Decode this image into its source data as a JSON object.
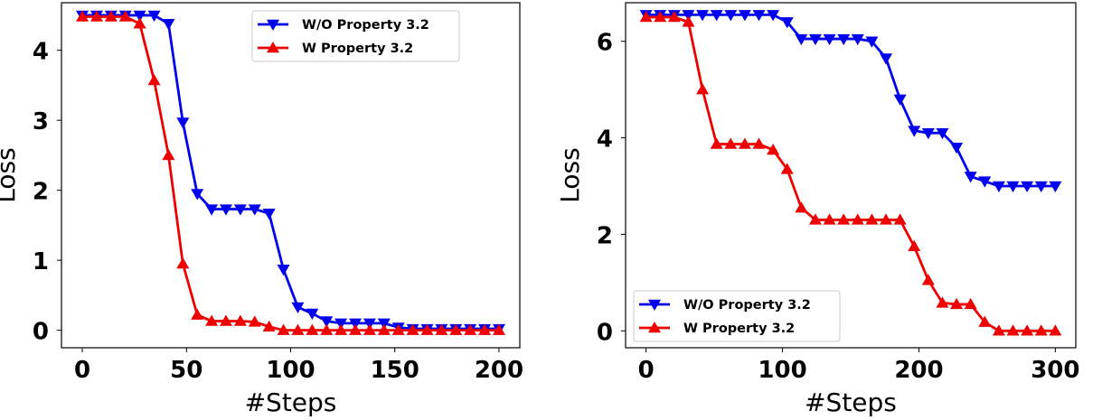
{
  "chart_data": [
    {
      "type": "line",
      "xlabel": "#Steps",
      "ylabel": "Loss",
      "xlim": [
        -10,
        210
      ],
      "ylim": [
        -0.25,
        4.68
      ],
      "xticks": [
        0,
        50,
        100,
        150,
        200
      ],
      "yticks": [
        0,
        1,
        2,
        3,
        4
      ],
      "legend_position": "top-right",
      "grid": false,
      "x_count": 30,
      "x_max": 200,
      "series": [
        {
          "name": "W/O Property 3.2",
          "color": "#0000ee",
          "marker": "triangle-down",
          "values": [
            4.5,
            4.5,
            4.5,
            4.5,
            4.5,
            4.5,
            4.38,
            2.97,
            1.95,
            1.73,
            1.73,
            1.73,
            1.73,
            1.67,
            0.87,
            0.33,
            0.24,
            0.13,
            0.1,
            0.1,
            0.1,
            0.1,
            0.04,
            0.02,
            0.02,
            0.02,
            0.02,
            0.02,
            0.02,
            0.02
          ]
        },
        {
          "name": "W Property 3.2",
          "color": "#ee0000",
          "marker": "triangle-up",
          "values": [
            4.48,
            4.48,
            4.48,
            4.48,
            4.38,
            3.57,
            2.5,
            0.95,
            0.22,
            0.13,
            0.13,
            0.13,
            0.12,
            0.05,
            0,
            0,
            0,
            0,
            0,
            0,
            0,
            0,
            0,
            0,
            0,
            0,
            0,
            0,
            0,
            0
          ]
        }
      ]
    },
    {
      "type": "line",
      "xlabel": "#Steps",
      "ylabel": "Loss",
      "xlim": [
        -15,
        315
      ],
      "ylim": [
        -0.35,
        6.8
      ],
      "xticks": [
        0,
        100,
        200,
        300
      ],
      "yticks": [
        0,
        2,
        4,
        6
      ],
      "legend_position": "lower-left",
      "grid": false,
      "x_count": 30,
      "x_max": 300,
      "series": [
        {
          "name": "W/O Property 3.2",
          "color": "#0000ee",
          "marker": "triangle-down",
          "values": [
            6.55,
            6.55,
            6.55,
            6.55,
            6.55,
            6.55,
            6.55,
            6.55,
            6.55,
            6.55,
            6.4,
            6.05,
            6.05,
            6.05,
            6.05,
            6.05,
            6.0,
            5.65,
            4.8,
            4.15,
            4.1,
            4.1,
            3.8,
            3.2,
            3.1,
            3.0,
            3.0,
            3.0,
            3.0,
            3.0
          ]
        },
        {
          "name": "W Property 3.2",
          "color": "#ee0000",
          "marker": "triangle-up",
          "values": [
            6.5,
            6.5,
            6.5,
            6.4,
            5.0,
            3.87,
            3.87,
            3.87,
            3.87,
            3.75,
            3.35,
            2.55,
            2.3,
            2.3,
            2.3,
            2.3,
            2.3,
            2.3,
            2.3,
            1.75,
            1.05,
            0.58,
            0.55,
            0.55,
            0.18,
            0,
            0,
            0,
            0,
            0
          ]
        }
      ]
    }
  ]
}
